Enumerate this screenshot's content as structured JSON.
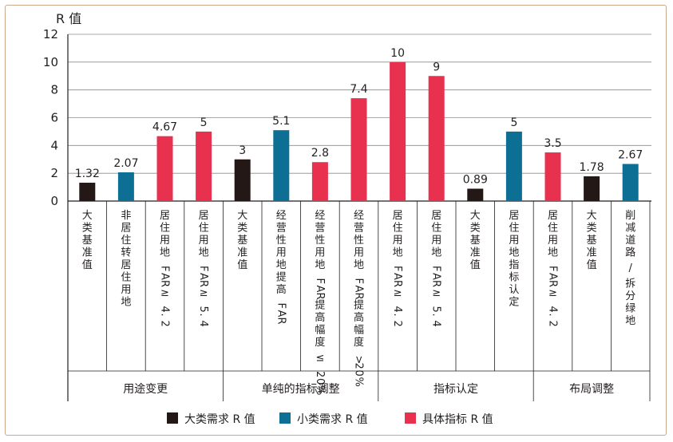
{
  "chart_data": {
    "type": "bar",
    "ylabel": "R 值",
    "ylim": [
      0,
      12
    ],
    "yticks": [
      0,
      2,
      4,
      6,
      8,
      10,
      12
    ],
    "grid": true,
    "legend_position": "bottom",
    "series": [
      {
        "name": "大类需求 R 值",
        "color": "#231815"
      },
      {
        "name": "小类需求 R 值",
        "color": "#0e6f94"
      },
      {
        "name": "具体指标 R 值",
        "color": "#e8314f"
      }
    ],
    "bars": [
      {
        "category": "大类基准值",
        "value": 1.32,
        "value_label": "1.32",
        "series": 0,
        "group": 0
      },
      {
        "category": "非居住转居住用地",
        "value": 2.07,
        "value_label": "2.07",
        "series": 1,
        "group": 0
      },
      {
        "category": "居住用地 FAR ≥ 4.2",
        "value": 4.67,
        "value_label": "4.67",
        "series": 2,
        "group": 0
      },
      {
        "category": "居住用地 FAR ≥ 5.4",
        "value": 5,
        "value_label": "5",
        "series": 2,
        "group": 0
      },
      {
        "category": "大类基准值",
        "value": 3,
        "value_label": "3",
        "series": 0,
        "group": 1
      },
      {
        "category": "经营性用地提高 FAR",
        "value": 5.1,
        "value_label": "5.1",
        "series": 1,
        "group": 1
      },
      {
        "category": "经营性用地 FAR 提高幅度 ≤ 20%",
        "value": 2.8,
        "value_label": "2.8",
        "series": 2,
        "group": 1
      },
      {
        "category": "经营性用地 FAR 提高幅度 >20%",
        "value": 7.4,
        "value_label": "7.4",
        "series": 2,
        "group": 1
      },
      {
        "category": "居住用地 FAR ≥ 4.2",
        "value": 10,
        "value_label": "10",
        "series": 2,
        "group": 2
      },
      {
        "category": "居住用地 FAR ≥ 5.4",
        "value": 9,
        "value_label": "9",
        "series": 2,
        "group": 2
      },
      {
        "category": "大类基准值",
        "value": 0.89,
        "value_label": "0.89",
        "series": 0,
        "group": 2
      },
      {
        "category": "居住用地指标认定",
        "value": 5,
        "value_label": "5",
        "series": 1,
        "group": 2
      },
      {
        "category": "居住用地 FAR ≥ 4.2",
        "value": 3.5,
        "value_label": "3.5",
        "series": 2,
        "group": 3
      },
      {
        "category": "大类基准值",
        "value": 1.78,
        "value_label": "1.78",
        "series": 0,
        "group": 3
      },
      {
        "category": "削减道路 / 拆分绿地",
        "value": 2.67,
        "value_label": "2.67",
        "series": 1,
        "group": 3
      }
    ],
    "groups": [
      {
        "label": "用途变更",
        "start": 0,
        "end": 3
      },
      {
        "label": "单纯的指标调整",
        "start": 4,
        "end": 7
      },
      {
        "label": "指标认定",
        "start": 8,
        "end": 11
      },
      {
        "label": "布局调整",
        "start": 12,
        "end": 14
      }
    ]
  }
}
